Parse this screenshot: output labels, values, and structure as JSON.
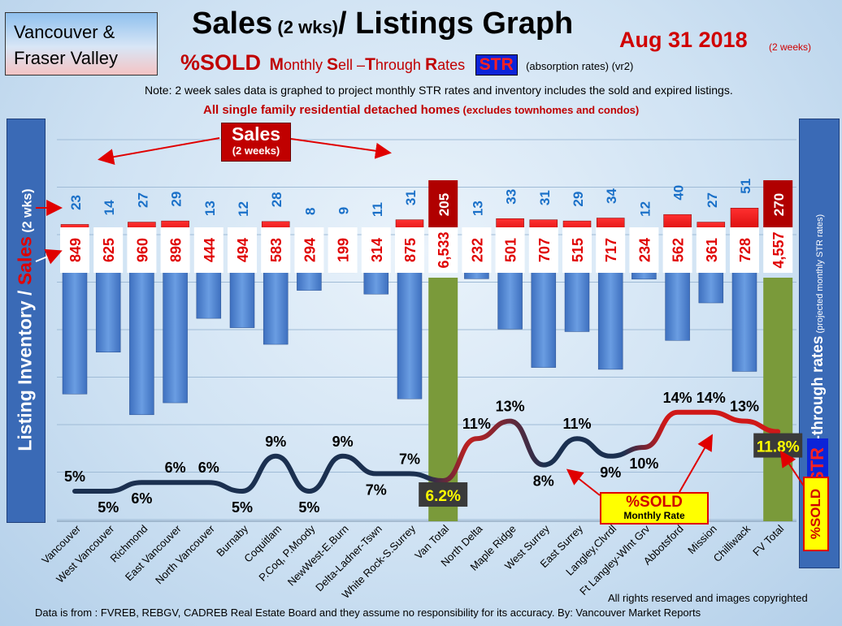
{
  "header": {
    "region": [
      "Vancouver &",
      "Fraser Valley"
    ],
    "title_main": "Sales",
    "title_small": " (2 wks)",
    "title_rest": "/ Listings Graph",
    "date": "Aug 31 2018",
    "date_sub": "(2 weeks)",
    "sold_label": "%SOLD",
    "sell_through_m": "M",
    "sell_through_rest1": "onthly ",
    "sell_through_s": "S",
    "sell_through_rest2": "ell –",
    "sell_through_t": "T",
    "sell_through_rest3": "hrough ",
    "sell_through_r": "R",
    "sell_through_rest4": "ates",
    "str_badge": "STR",
    "absorption": "(absorption rates)",
    "version": "(vr2)",
    "note": "Note: 2 week sales data is graphed to project monthly STR rates and inventory includes the sold and expired listings.",
    "single_family": "All single family residential detached homes",
    "single_family_small": " (excludes townhomes and condos)"
  },
  "side_labels": {
    "left_1": "Listing Inventory / ",
    "left_sales": "Sales",
    "left_small": " (2 wks)",
    "right_main": "Sell-through rates",
    "right_small": " (projected monthly STR rates)",
    "str": "STR",
    "sold": "%SOLD"
  },
  "callouts": {
    "sales_l1": "Sales",
    "sales_l2": "(2 weeks)",
    "sold_l1": "%SOLD",
    "sold_l2": "Monthly Rate"
  },
  "footer": {
    "rights": "All rights reserved and  images copyrighted",
    "source": "Data is from : FVREB, REBGV, CADREB Real Estate Board and they assume no responsibility for its accuracy. By: Vancouver Market Reports"
  },
  "colors": {
    "listing_bar": "#4a80d0",
    "sales_bar": "#ff1010",
    "total_bar": "#7a9a3a",
    "total_sales_bar": "#b00000",
    "line_low": "#1b3050",
    "line_high": "#c82020",
    "sales_label": "#1a70c8",
    "listing_label": "#e00000"
  },
  "chart_data": {
    "type": "bar",
    "categories": [
      "Vancouver",
      "West Vancouver",
      "Richmond",
      "East Vancouver",
      "North Vancouver",
      "Burnaby",
      "Coquitlam",
      "P.Coq, P.Moody",
      "NewWest-E.Burn",
      "Delta-Ladner-Tswn",
      "White Rock-S.Surrey",
      "Van Total",
      "North Delta",
      "Maple Ridge",
      "West Surrey",
      "East Surrey",
      "Langley,Clvrdl",
      "Ft Langley-Wlnt Grv",
      "Abbotsford",
      "Mission",
      "Chilliwack",
      "FV Total"
    ],
    "series": [
      {
        "name": "Listing Inventory",
        "values": [
          849,
          625,
          960,
          896,
          444,
          494,
          583,
          294,
          199,
          314,
          875,
          6533,
          232,
          501,
          707,
          515,
          717,
          234,
          562,
          361,
          728,
          4557
        ],
        "labels": [
          "849",
          "625",
          "960",
          "896",
          "444",
          "494",
          "583",
          "294",
          "199",
          "314",
          "875",
          "6,533",
          "232",
          "501",
          "707",
          "515",
          "717",
          "234",
          "562",
          "361",
          "728",
          "4,557"
        ]
      },
      {
        "name": "Sales",
        "values": [
          23,
          14,
          27,
          29,
          13,
          12,
          28,
          8,
          9,
          11,
          31,
          205,
          13,
          33,
          31,
          29,
          34,
          12,
          40,
          27,
          51,
          270
        ]
      },
      {
        "name": "%SOLD",
        "values": [
          5,
          5,
          6,
          6,
          6,
          5,
          9,
          5,
          9,
          7,
          7,
          6.2,
          11,
          13,
          8,
          11,
          9,
          10,
          14,
          14,
          13,
          11.8
        ],
        "labels": [
          "5%",
          "5%",
          "6%",
          "6%",
          "6%",
          "5%",
          "9%",
          "5%",
          "9%",
          "7%",
          "7%",
          "6.2%",
          "11%",
          "13%",
          "8%",
          "11%",
          "9%",
          "10%",
          "14%",
          "14%",
          "13%",
          "11.8%"
        ]
      }
    ],
    "totals": [
      "Van Total",
      "FV Total"
    ]
  }
}
